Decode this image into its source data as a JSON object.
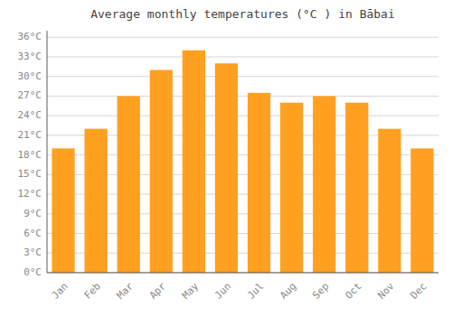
{
  "chart_data": {
    "type": "bar",
    "title": "Average monthly temperatures (°C ) in Bābai",
    "categories": [
      "Jan",
      "Feb",
      "Mar",
      "Apr",
      "May",
      "Jun",
      "Jul",
      "Aug",
      "Sep",
      "Oct",
      "Nov",
      "Dec"
    ],
    "values": [
      19,
      22,
      27,
      31,
      34,
      32,
      27.5,
      26,
      27,
      26,
      22,
      19
    ],
    "color": "#FFA020",
    "ylim": [
      0,
      37
    ],
    "yticks": [
      {
        "value": 0,
        "label": "0°C"
      },
      {
        "value": 3,
        "label": "3°C"
      },
      {
        "value": 6,
        "label": "6°C"
      },
      {
        "value": 9,
        "label": "9°C"
      },
      {
        "value": 12,
        "label": "12°C"
      },
      {
        "value": 15,
        "label": "15°C"
      },
      {
        "value": 18,
        "label": "18°C"
      },
      {
        "value": 21,
        "label": "21°C"
      },
      {
        "value": 24,
        "label": "24°C"
      },
      {
        "value": 27,
        "label": "27°C"
      },
      {
        "value": 30,
        "label": "30°C"
      },
      {
        "value": 33,
        "label": "33°C"
      },
      {
        "value": 36,
        "label": "36°C"
      }
    ],
    "grid": true
  }
}
